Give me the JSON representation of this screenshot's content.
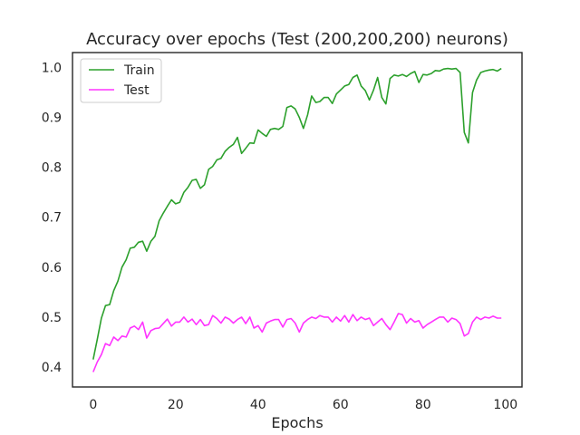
{
  "chart_data": {
    "type": "line",
    "title": "Accuracy over epochs (Test (200,200,200) neurons)",
    "xlabel": "Epochs",
    "ylabel": "",
    "xlim": [
      -5,
      104
    ],
    "ylim": [
      0.36,
      1.03
    ],
    "xticks": [
      0,
      20,
      40,
      60,
      80,
      100
    ],
    "yticks": [
      0.4,
      0.5,
      0.6,
      0.7,
      0.8,
      0.9,
      1.0
    ],
    "xtick_labels": [
      "0",
      "20",
      "40",
      "60",
      "80",
      "100"
    ],
    "ytick_labels": [
      "0.4",
      "0.5",
      "0.6",
      "0.7",
      "0.8",
      "0.9",
      "1.0"
    ],
    "grid": false,
    "legend": {
      "position": "top-left"
    },
    "series": [
      {
        "name": "Train",
        "color": "#2ca02c",
        "x": [
          0,
          1,
          2,
          3,
          4,
          5,
          6,
          7,
          8,
          9,
          10,
          11,
          12,
          13,
          14,
          15,
          16,
          17,
          18,
          19,
          20,
          21,
          22,
          23,
          24,
          25,
          26,
          27,
          28,
          29,
          30,
          31,
          32,
          33,
          34,
          35,
          36,
          37,
          38,
          39,
          40,
          41,
          42,
          43,
          44,
          45,
          46,
          47,
          48,
          49,
          50,
          51,
          52,
          53,
          54,
          55,
          56,
          57,
          58,
          59,
          60,
          61,
          62,
          63,
          64,
          65,
          66,
          67,
          68,
          69,
          70,
          71,
          72,
          73,
          74,
          75,
          76,
          77,
          78,
          79,
          80,
          81,
          82,
          83,
          84,
          85,
          86,
          87,
          88,
          89,
          90,
          91,
          92,
          93,
          94,
          95,
          96,
          97,
          98,
          99
        ],
        "values": [
          0.415,
          0.455,
          0.498,
          0.523,
          0.525,
          0.553,
          0.572,
          0.6,
          0.615,
          0.638,
          0.64,
          0.65,
          0.652,
          0.632,
          0.652,
          0.662,
          0.693,
          0.708,
          0.722,
          0.735,
          0.727,
          0.73,
          0.75,
          0.76,
          0.774,
          0.776,
          0.758,
          0.765,
          0.796,
          0.802,
          0.815,
          0.818,
          0.832,
          0.84,
          0.846,
          0.86,
          0.828,
          0.838,
          0.849,
          0.848,
          0.875,
          0.868,
          0.862,
          0.876,
          0.878,
          0.876,
          0.882,
          0.92,
          0.923,
          0.917,
          0.9,
          0.878,
          0.905,
          0.943,
          0.93,
          0.932,
          0.94,
          0.94,
          0.928,
          0.947,
          0.955,
          0.963,
          0.966,
          0.98,
          0.985,
          0.963,
          0.954,
          0.935,
          0.955,
          0.98,
          0.94,
          0.927,
          0.978,
          0.985,
          0.983,
          0.986,
          0.982,
          0.988,
          0.992,
          0.97,
          0.986,
          0.985,
          0.988,
          0.994,
          0.993,
          0.997,
          0.998,
          0.997,
          0.998,
          0.99,
          0.87,
          0.849,
          0.95,
          0.975,
          0.99,
          0.993,
          0.995,
          0.996,
          0.993,
          0.998
        ]
      },
      {
        "name": "Test",
        "color": "#ff33ff",
        "x": [
          0,
          1,
          2,
          3,
          4,
          5,
          6,
          7,
          8,
          9,
          10,
          11,
          12,
          13,
          14,
          15,
          16,
          17,
          18,
          19,
          20,
          21,
          22,
          23,
          24,
          25,
          26,
          27,
          28,
          29,
          30,
          31,
          32,
          33,
          34,
          35,
          36,
          37,
          38,
          39,
          40,
          41,
          42,
          43,
          44,
          45,
          46,
          47,
          48,
          49,
          50,
          51,
          52,
          53,
          54,
          55,
          56,
          57,
          58,
          59,
          60,
          61,
          62,
          63,
          64,
          65,
          66,
          67,
          68,
          69,
          70,
          71,
          72,
          73,
          74,
          75,
          76,
          77,
          78,
          79,
          80,
          81,
          82,
          83,
          84,
          85,
          86,
          87,
          88,
          89,
          90,
          91,
          92,
          93,
          94,
          95,
          96,
          97,
          98,
          99
        ],
        "values": [
          0.39,
          0.41,
          0.425,
          0.447,
          0.443,
          0.46,
          0.453,
          0.462,
          0.46,
          0.478,
          0.482,
          0.475,
          0.49,
          0.458,
          0.473,
          0.477,
          0.478,
          0.487,
          0.496,
          0.482,
          0.49,
          0.49,
          0.5,
          0.49,
          0.496,
          0.485,
          0.495,
          0.483,
          0.485,
          0.503,
          0.497,
          0.488,
          0.5,
          0.496,
          0.488,
          0.495,
          0.5,
          0.487,
          0.5,
          0.478,
          0.483,
          0.47,
          0.488,
          0.492,
          0.495,
          0.495,
          0.48,
          0.495,
          0.497,
          0.488,
          0.47,
          0.488,
          0.495,
          0.5,
          0.497,
          0.503,
          0.5,
          0.5,
          0.49,
          0.5,
          0.492,
          0.503,
          0.49,
          0.505,
          0.493,
          0.5,
          0.495,
          0.498,
          0.483,
          0.49,
          0.497,
          0.485,
          0.475,
          0.49,
          0.507,
          0.505,
          0.488,
          0.497,
          0.49,
          0.493,
          0.478,
          0.485,
          0.49,
          0.495,
          0.5,
          0.5,
          0.49,
          0.498,
          0.495,
          0.487,
          0.462,
          0.467,
          0.49,
          0.5,
          0.495,
          0.5,
          0.498,
          0.502,
          0.498,
          0.498
        ]
      }
    ]
  }
}
